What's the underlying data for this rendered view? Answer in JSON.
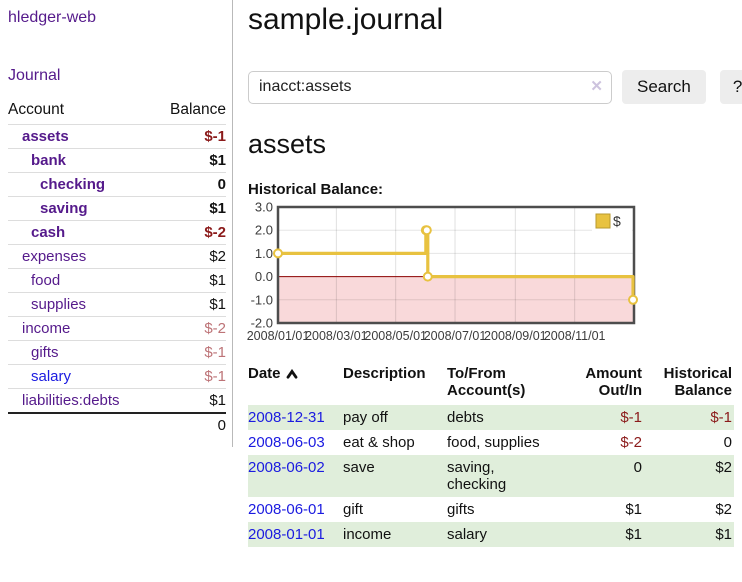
{
  "app": {
    "title": "hledger-web",
    "nav_journal": "Journal"
  },
  "sidebar": {
    "header": {
      "account": "Account",
      "balance": "Balance"
    },
    "accounts": [
      {
        "name": "assets",
        "balance": "$-1",
        "level": 1,
        "bold": true,
        "tone": "neg-strong",
        "link": "purple"
      },
      {
        "name": "bank",
        "balance": "$1",
        "level": 2,
        "bold": true,
        "tone": "pos-strong",
        "link": "purple"
      },
      {
        "name": "checking",
        "balance": "0",
        "level": 3,
        "bold": true,
        "tone": "pos-strong",
        "link": "purple"
      },
      {
        "name": "saving",
        "balance": "$1",
        "level": 3,
        "bold": true,
        "tone": "pos-strong",
        "link": "purple"
      },
      {
        "name": "cash",
        "balance": "$-2",
        "level": 2,
        "bold": true,
        "tone": "neg-strong",
        "link": "purple"
      },
      {
        "name": "expenses",
        "balance": "$2",
        "level": 1,
        "bold": false,
        "tone": "pos-strong",
        "link": "purple"
      },
      {
        "name": "food",
        "balance": "$1",
        "level": 2,
        "bold": false,
        "tone": "pos-strong",
        "link": "purple"
      },
      {
        "name": "supplies",
        "balance": "$1",
        "level": 2,
        "bold": false,
        "tone": "pos-strong",
        "link": "purple"
      },
      {
        "name": "income",
        "balance": "$-2",
        "level": 1,
        "bold": false,
        "tone": "neg-muted",
        "link": "purple"
      },
      {
        "name": "gifts",
        "balance": "$-1",
        "level": 2,
        "bold": false,
        "tone": "neg-muted",
        "link": "purple"
      },
      {
        "name": "salary",
        "balance": "$-1",
        "level": 2,
        "bold": false,
        "tone": "neg-muted",
        "link": "blue"
      },
      {
        "name": "liabilities:debts",
        "balance": "$1",
        "level": 1,
        "bold": false,
        "tone": "pos-strong",
        "link": "purple"
      }
    ],
    "total": "0"
  },
  "header": {
    "title": "sample.journal"
  },
  "search": {
    "value": "inacct:assets",
    "clear_icon": "✕",
    "button": "Search",
    "help_button": "?"
  },
  "main": {
    "heading": "assets",
    "chart_label": "Historical Balance:"
  },
  "chart_data": {
    "type": "line",
    "title": "Historical Balance:",
    "mode": "steps",
    "x_range": [
      "2008-01-01",
      "2009-01-01"
    ],
    "ylim": [
      -2,
      3
    ],
    "yticks": [
      "3.0",
      "2.0",
      "1.0",
      "0.0",
      "-1.0",
      "-2.0"
    ],
    "xticks": [
      {
        "t": "2008-01-01",
        "label": "2008/01/01"
      },
      {
        "t": "2008-03-01",
        "label": "2008/03/01"
      },
      {
        "t": "2008-05-01",
        "label": "2008/05/01"
      },
      {
        "t": "2008-07-01",
        "label": "2008/07/01"
      },
      {
        "t": "2008-09-01",
        "label": "2008/09/01"
      },
      {
        "t": "2008-11-01",
        "label": "2008/11/01"
      }
    ],
    "legend": {
      "label": "$",
      "position": "top-right"
    },
    "series": [
      {
        "name": "$",
        "color": "#e8c240",
        "points": [
          [
            "2008-01-01",
            1
          ],
          [
            "2008-06-01",
            2
          ],
          [
            "2008-06-02",
            2
          ],
          [
            "2008-06-03",
            0
          ],
          [
            "2008-12-31",
            -1
          ]
        ]
      }
    ],
    "grid": true,
    "colors": {
      "line": "#e8c240",
      "swatch_border": "#b89a2e",
      "negative_fill": "#f9d9da",
      "zero_line": "#8b0000",
      "border": "#4d4d4d",
      "tick_text": "#3c3c3c"
    }
  },
  "journal": {
    "columns": [
      "Date",
      "Description",
      "To/From Account(s)",
      "Amount Out/In",
      "Historical Balance"
    ],
    "sort_icon": "chevron-up",
    "rows": [
      {
        "date": "2008-12-31",
        "description": "pay off",
        "accounts": "debts",
        "amount": "$-1",
        "amount_tone": "neg",
        "balance": "$-1",
        "balance_tone": "neg"
      },
      {
        "date": "2008-06-03",
        "description": "eat & shop",
        "accounts": "food, supplies",
        "amount": "$-2",
        "amount_tone": "neg",
        "balance": "0",
        "balance_tone": ""
      },
      {
        "date": "2008-06-02",
        "description": "save",
        "accounts": "saving, checking",
        "amount": "0",
        "amount_tone": "",
        "balance": "$2",
        "balance_tone": ""
      },
      {
        "date": "2008-06-01",
        "description": "gift",
        "accounts": "gifts",
        "amount": "$1",
        "amount_tone": "",
        "balance": "$2",
        "balance_tone": ""
      },
      {
        "date": "2008-01-01",
        "description": "income",
        "accounts": "salary",
        "amount": "$1",
        "amount_tone": "",
        "balance": "$1",
        "balance_tone": ""
      }
    ]
  }
}
